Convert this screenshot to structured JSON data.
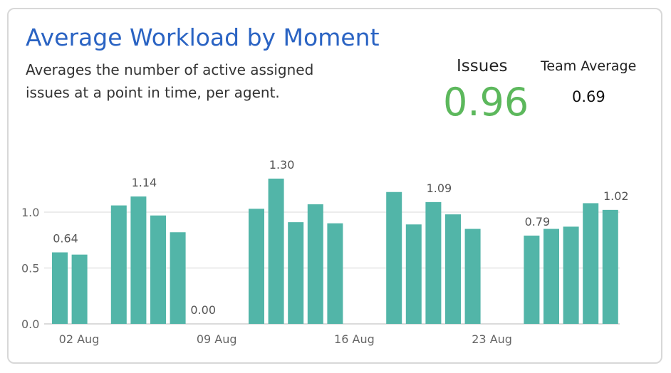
{
  "card": {
    "title": "Average Workload by Moment",
    "subtitle": "Averages the number of active assigned issues at a point in time, per agent."
  },
  "kpi": {
    "label": "Issues",
    "value": "0.96",
    "value_color": "#5cb85c"
  },
  "team": {
    "label": "Team Average",
    "value": "0.69"
  },
  "chart_data": {
    "type": "bar",
    "bar_color": "#52b5a8",
    "ylim": [
      0,
      1.35
    ],
    "y_ticks": [
      {
        "value": 0.0,
        "label": "0.0"
      },
      {
        "value": 0.5,
        "label": "0.5"
      },
      {
        "value": 1.0,
        "label": "1.0"
      }
    ],
    "x_ticks": [
      {
        "day": 2,
        "label": "02 Aug"
      },
      {
        "day": 9,
        "label": "09 Aug"
      },
      {
        "day": 16,
        "label": "16 Aug"
      },
      {
        "day": 23,
        "label": "23 Aug"
      }
    ],
    "grid": true,
    "points": [
      {
        "day": 2,
        "value": 0.64,
        "label": "0.64"
      },
      {
        "day": 3,
        "value": 0.62
      },
      {
        "day": 5,
        "value": 1.06
      },
      {
        "day": 6,
        "value": 1.14,
        "label": "1.14"
      },
      {
        "day": 7,
        "value": 0.97
      },
      {
        "day": 8,
        "value": 0.82
      },
      {
        "day": 9,
        "value": 0.0,
        "label": "0.00"
      },
      {
        "day": 12,
        "value": 1.03
      },
      {
        "day": 13,
        "value": 1.3,
        "label": "1.30"
      },
      {
        "day": 14,
        "value": 0.91
      },
      {
        "day": 15,
        "value": 1.07
      },
      {
        "day": 16,
        "value": 0.9
      },
      {
        "day": 19,
        "value": 1.18
      },
      {
        "day": 20,
        "value": 0.89
      },
      {
        "day": 21,
        "value": 1.09,
        "label": "1.09"
      },
      {
        "day": 22,
        "value": 0.98
      },
      {
        "day": 23,
        "value": 0.85
      },
      {
        "day": 26,
        "value": 0.79,
        "label": "0.79"
      },
      {
        "day": 27,
        "value": 0.85
      },
      {
        "day": 28,
        "value": 0.87
      },
      {
        "day": 29,
        "value": 1.08
      },
      {
        "day": 30,
        "value": 1.02,
        "label": "1.02"
      }
    ]
  }
}
